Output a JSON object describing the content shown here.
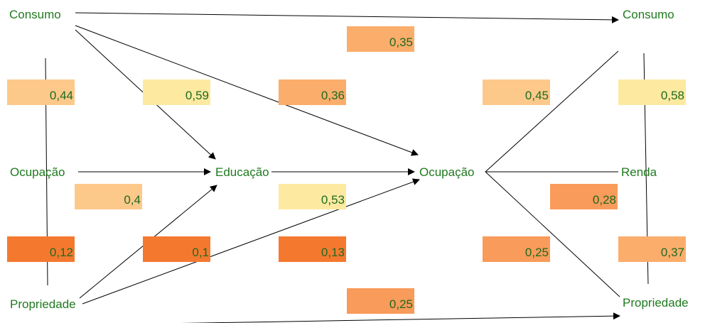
{
  "nodes": {
    "left_consumo": "Consumo",
    "left_ocupacao": "Ocupação",
    "left_propriedade": "Propriedade",
    "educacao": "Educação",
    "mid_ocupacao": "Ocupação",
    "right_consumo": "Consumo",
    "right_renda": "Renda",
    "right_propriedade": "Propriedade"
  },
  "coefficients": {
    "consumo_consumo": "0,35",
    "col1_top": "0,44",
    "col2_top": "0,59",
    "col3_top": "0,36",
    "col4_top": "0,45",
    "col5_top": "0,58",
    "educ_left": "0,4",
    "educ_ocup": "0,53",
    "ocup_renda": "0,28",
    "col1_bottom": "0,12",
    "col2_bottom": "0,1",
    "col3_bottom": "0,13",
    "col4_bottom": "0,25",
    "col5_bottom": "0,37",
    "propriedade_propriedade": "0,25"
  },
  "colors": {
    "text": "#1f7a1f",
    "light_yellow": "#fde9a0",
    "light_orange": "#fdc98a",
    "medium_orange": "#fbad6b",
    "orange": "#f99b5a",
    "dark_orange": "#f4792f",
    "line": "#000000"
  }
}
